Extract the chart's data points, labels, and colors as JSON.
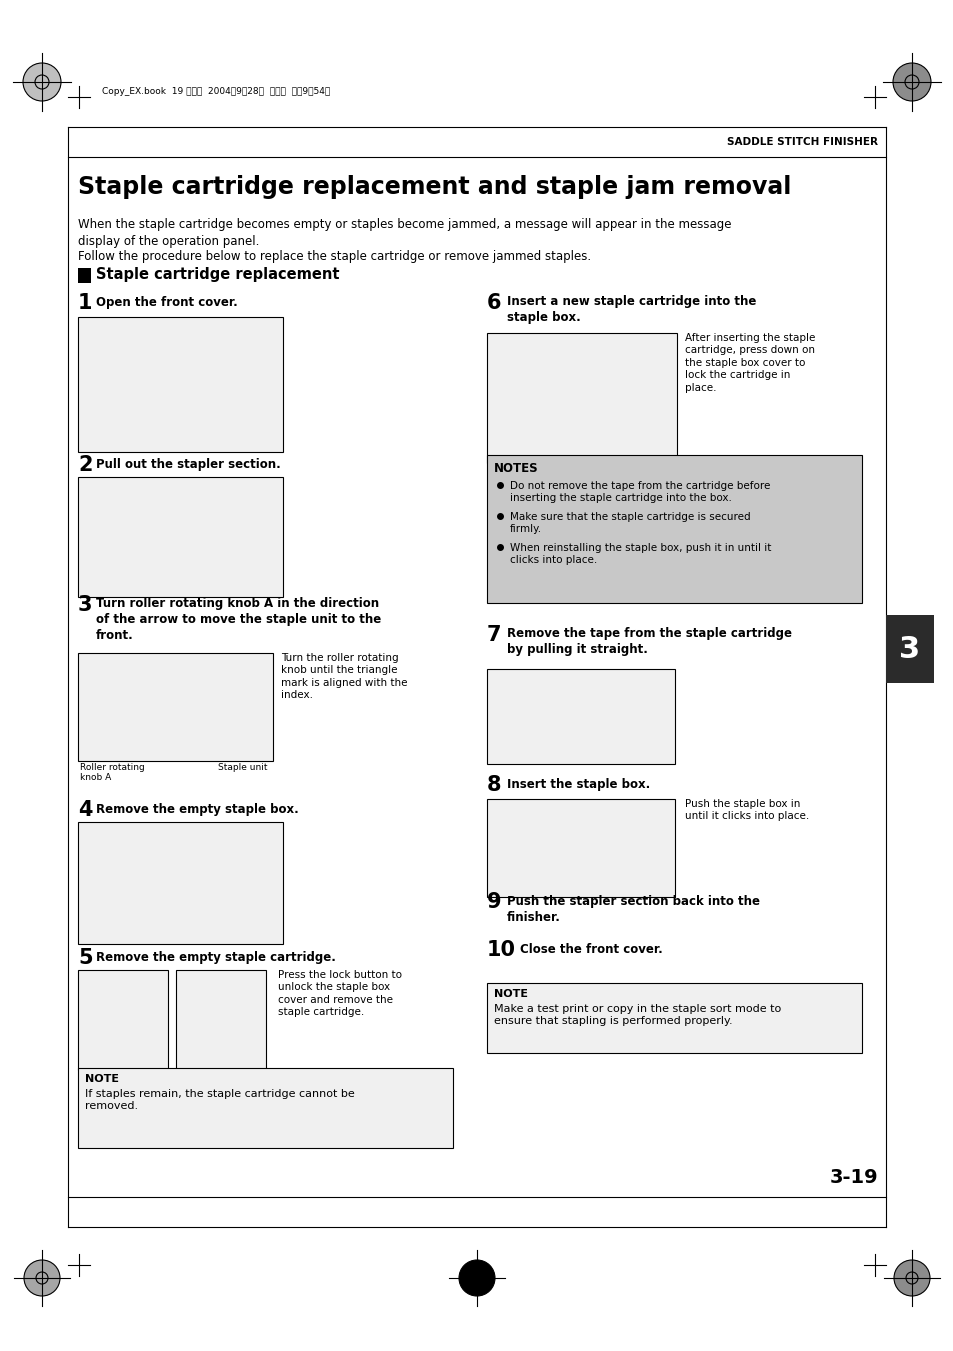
{
  "page_width": 9.54,
  "page_height": 13.51,
  "bg_color": "#ffffff",
  "header_text": "SADDLE STITCH FINISHER",
  "header_meta": "Copy_EX.book  19 ページ  2004年9月28日  火曜日  午後9時54分",
  "title": "Staple cartridge replacement and staple jam removal",
  "intro1": "When the staple cartridge becomes empty or staples become jammed, a message will appear in the message\ndisplay of the operation panel.",
  "intro2": "Follow the procedure below to replace the staple cartridge or remove jammed staples.",
  "section_title": "Staple cartridge replacement",
  "s1_title": "Open the front cover.",
  "s2_title": "Pull out the stapler section.",
  "s3_title": "Turn roller rotating knob A in the direction\nof the arrow to move the staple unit to the\nfront.",
  "s3_side": "Turn the roller rotating\nknob until the triangle\nmark is aligned with the\nindex.",
  "s3_label1": "Roller rotating\nknob A",
  "s3_label2": "Staple unit",
  "s4_title": "Remove the empty staple box.",
  "s5_title": "Remove the empty staple cartridge.",
  "s5_side": "Press the lock button to\nunlock the staple box\ncover and remove the\nstaple cartridge.",
  "s6_title": "Insert a new staple cartridge into the\nstaple box.",
  "s6_side": "After inserting the staple\ncartridge, press down on\nthe staple box cover to\nlock the cartridge in\nplace.",
  "s7_title": "Remove the tape from the staple cartridge\nby pulling it straight.",
  "s8_title": "Insert the staple box.",
  "s8_side": "Push the staple box in\nuntil it clicks into place.",
  "s9_title": "Push the stapler section back into the\nfinisher.",
  "s10_title": "Close the front cover.",
  "notes_title": "NOTES",
  "notes_items": [
    "Do not remove the tape from the cartridge before\ninserting the staple cartridge into the box.",
    "Make sure that the staple cartridge is secured\nfirmly.",
    "When reinstalling the staple box, push it in until it\nclicks into place."
  ],
  "notes_bg": "#c8c8c8",
  "note_bl_title": "NOTE",
  "note_bl_text": "If staples remain, the staple cartridge cannot be\nremoved.",
  "note_br_title": "NOTE",
  "note_br_text": "Make a test print or copy in the staple sort mode to\nensure that stapling is performed properly.",
  "tab_num": "3",
  "page_num": "3-19",
  "img_bg": "#f0f0f0",
  "note_bg": "#f0f0f0"
}
